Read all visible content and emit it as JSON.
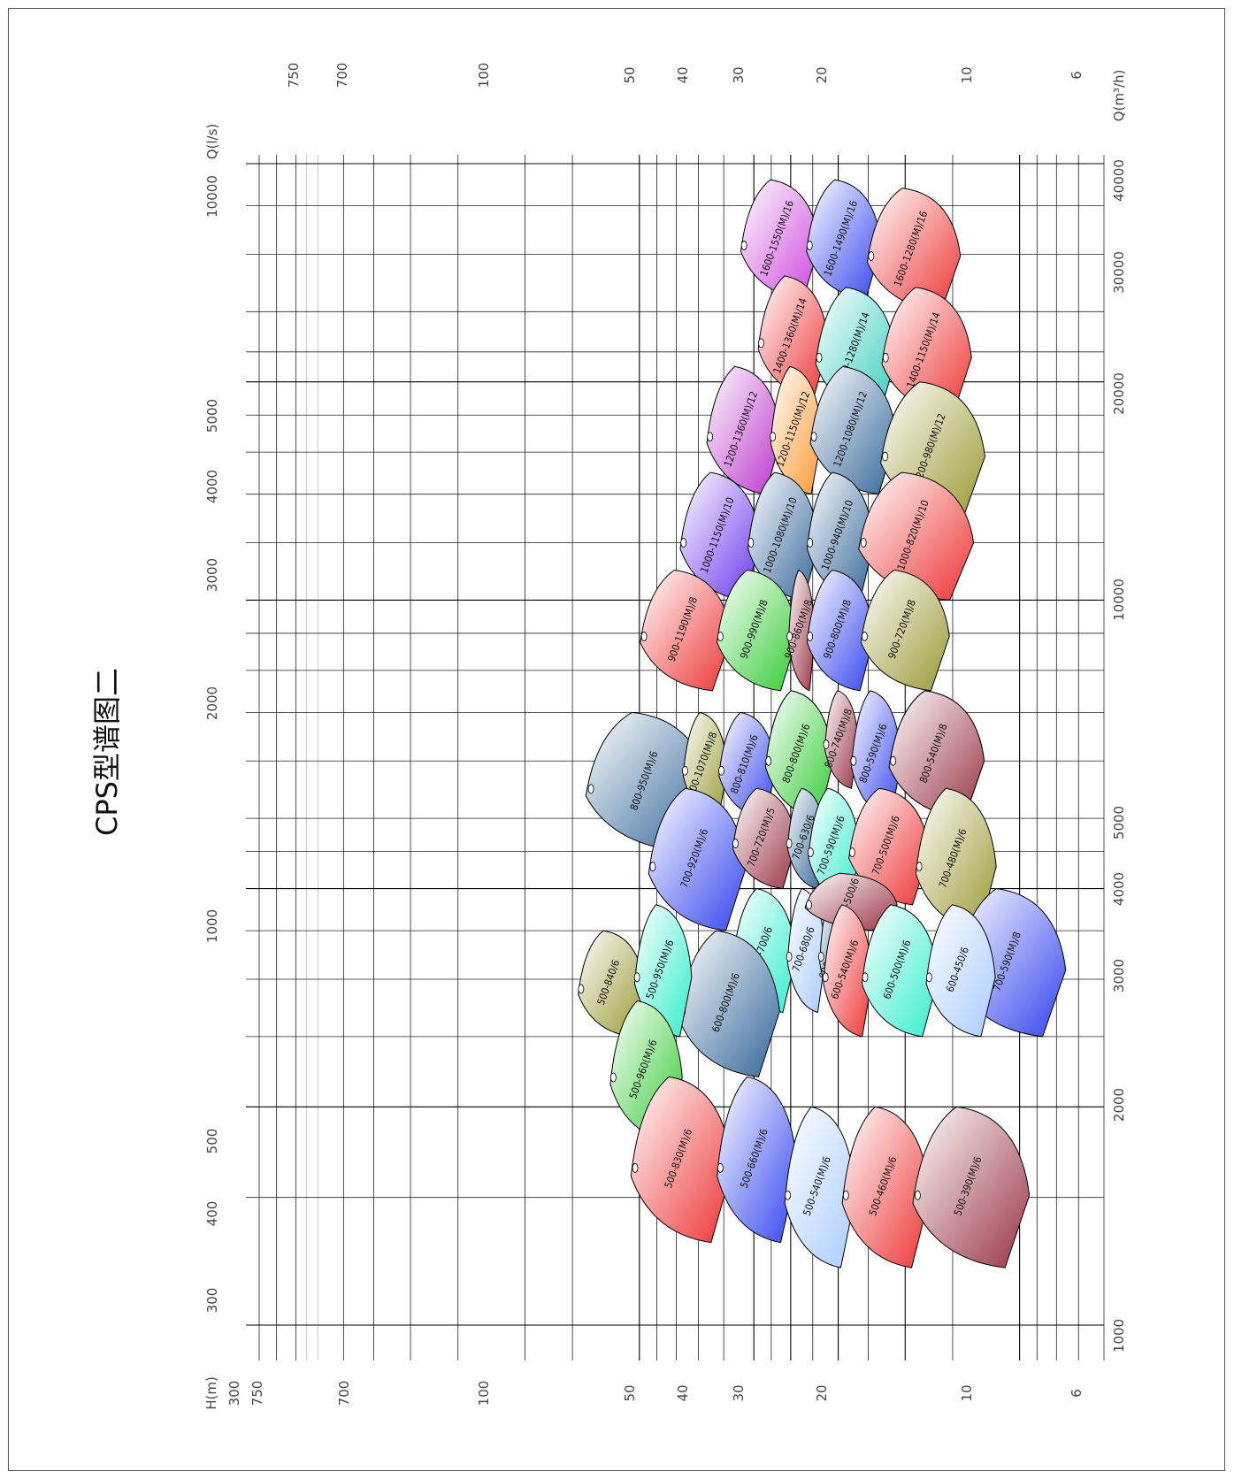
{
  "chart_data": {
    "type": "area",
    "title": "CPS型谱图二",
    "orientation": "rotated-90-ccw",
    "axes": {
      "flow_ls": {
        "label": "Q(l/s)",
        "scale": "log",
        "range": [
          1000,
          10000
        ],
        "ticks": [
          "10000",
          "5000",
          "4000",
          "3000",
          "2000",
          "1000",
          "500",
          "400",
          "300"
        ]
      },
      "flow_m3h": {
        "label": "Q(m³/h)",
        "scale": "log",
        "range": [
          1000,
          40000
        ],
        "ticks": [
          "40000",
          "30000",
          "20000",
          "10000",
          "5000",
          "4000",
          "3000",
          "2000",
          "1000"
        ]
      },
      "head_top": {
        "label": "",
        "scale": "log",
        "range": [
          6,
          1000
        ],
        "ticks": [
          "750",
          "700",
          "100",
          "50",
          "40",
          "30",
          "20",
          "10",
          "6"
        ]
      },
      "head_bottom": {
        "label": "H(m)",
        "scale": "log",
        "range": [
          6,
          1000
        ],
        "ticks": [
          "300",
          "750",
          "700",
          "100",
          "50",
          "40",
          "30",
          "20",
          "10",
          "6"
        ]
      }
    },
    "grid": true,
    "series": [
      {
        "name": "1600-1550(M)/16",
        "color": "#cc44dd",
        "q_range": [
          26000,
          38000
        ],
        "h_range": [
          35,
          52
        ]
      },
      {
        "name": "1600-1490(M)/16",
        "color": "#3344ee",
        "q_range": [
          26000,
          38000
        ],
        "h_range": [
          24,
          35
        ]
      },
      {
        "name": "1600-1280(M)/16",
        "color": "#ee3333",
        "q_range": [
          25000,
          37000
        ],
        "h_range": [
          15,
          24
        ]
      },
      {
        "name": "1400-1360(M)/14",
        "color": "#ee3333",
        "q_range": [
          19000,
          28000
        ],
        "h_range": [
          33,
          47
        ]
      },
      {
        "name": "1400-1280(M)/14",
        "color": "#33ccbb",
        "q_range": [
          18000,
          27000
        ],
        "h_range": [
          22,
          33
        ]
      },
      {
        "name": "1400-1150(M)/14",
        "color": "#ee3333",
        "q_range": [
          18000,
          27000
        ],
        "h_range": [
          14,
          22
        ]
      },
      {
        "name": "1200-1360(M)/12",
        "color": "#bb33cc",
        "q_range": [
          14000,
          21000
        ],
        "h_range": [
          44,
          64
        ]
      },
      {
        "name": "1200-1150(M)/12",
        "color": "#ff9933",
        "q_range": [
          14000,
          21000
        ],
        "h_range": [
          34,
          44
        ]
      },
      {
        "name": "1200-1080(M)/12",
        "color": "#336699",
        "q_range": [
          14000,
          21000
        ],
        "h_range": [
          22,
          34
        ]
      },
      {
        "name": "1200-980(M)/12",
        "color": "#999933",
        "q_range": [
          13000,
          20000
        ],
        "h_range": [
          13,
          22
        ]
      },
      {
        "name": "1000-1150(M)/10",
        "color": "#6633ee",
        "q_range": [
          10000,
          15000
        ],
        "h_range": [
          50,
          75
        ]
      },
      {
        "name": "1000-1080(M)/10",
        "color": "#336699",
        "q_range": [
          10000,
          15000
        ],
        "h_range": [
          35,
          50
        ]
      },
      {
        "name": "1000-940(M)/10",
        "color": "#336699",
        "q_range": [
          10000,
          15000
        ],
        "h_range": [
          25,
          35
        ]
      },
      {
        "name": "1000-820(M)/10",
        "color": "#ee3333",
        "q_range": [
          10000,
          15000
        ],
        "h_range": [
          14,
          25
        ]
      },
      {
        "name": "900-1190(M)/8",
        "color": "#ee3333",
        "q_range": [
          7500,
          11000
        ],
        "h_range": [
          60,
          95
        ]
      },
      {
        "name": "900-990(M)/8",
        "color": "#33cc33",
        "q_range": [
          7500,
          11000
        ],
        "h_range": [
          40,
          60
        ]
      },
      {
        "name": "900-860(M)/8",
        "color": "#993344",
        "q_range": [
          7500,
          11000
        ],
        "h_range": [
          35,
          40
        ]
      },
      {
        "name": "900-800(M)/8",
        "color": "#3344ee",
        "q_range": [
          7500,
          11000
        ],
        "h_range": [
          25,
          35
        ]
      },
      {
        "name": "900-720(M)/8",
        "color": "#999933",
        "q_range": [
          7500,
          11000
        ],
        "h_range": [
          16,
          25
        ]
      },
      {
        "name": "800-950(M)/6",
        "color": "#336699",
        "q_range": [
          4500,
          7000
        ],
        "h_range": [
          70,
          130
        ]
      },
      {
        "name": "800-1070(M)/8",
        "color": "#999933",
        "q_range": [
          5000,
          7000
        ],
        "h_range": [
          60,
          75
        ]
      },
      {
        "name": "800-810(M)/6",
        "color": "#3344ee",
        "q_range": [
          5000,
          7000
        ],
        "h_range": [
          45,
          60
        ]
      },
      {
        "name": "800-650(M)/6",
        "color": "#33cc33",
        "q_range": [
          5000,
          7500
        ],
        "h_range": [
          32,
          45
        ]
      },
      {
        "name": "800-800(M)/6",
        "color": "#33cc33",
        "q_range": [
          5000,
          7500
        ],
        "h_range": [
          32,
          45
        ]
      },
      {
        "name": "800-740(M)/8",
        "color": "#993344",
        "q_range": [
          5500,
          7500
        ],
        "h_range": [
          27,
          32
        ]
      },
      {
        "name": "800-590(M)/6",
        "color": "#3344ee",
        "q_range": [
          5000,
          7500
        ],
        "h_range": [
          21,
          27
        ]
      },
      {
        "name": "800-530(M)/6",
        "color": "#993344",
        "q_range": [
          5000,
          7500
        ],
        "h_range": [
          13,
          21
        ]
      },
      {
        "name": "800-540(M)/8",
        "color": "#993344",
        "q_range": [
          5000,
          7500
        ],
        "h_range": [
          13,
          21
        ]
      },
      {
        "name": "700-920(M)/6",
        "color": "#3344ee",
        "q_range": [
          3500,
          5500
        ],
        "h_range": [
          55,
          90
        ]
      },
      {
        "name": "700-720(M)/5",
        "color": "#993344",
        "q_range": [
          4000,
          5500
        ],
        "h_range": [
          40,
          55
        ]
      },
      {
        "name": "700-630/6",
        "color": "#336699",
        "q_range": [
          4000,
          5500
        ],
        "h_range": [
          33,
          40
        ]
      },
      {
        "name": "700-590(M)/6",
        "color": "#33eecc",
        "q_range": [
          3800,
          5500
        ],
        "h_range": [
          27,
          35
        ]
      },
      {
        "name": "700-500(M)/6",
        "color": "#ee3333",
        "q_range": [
          3800,
          5500
        ],
        "h_range": [
          18,
          27
        ]
      },
      {
        "name": "700-480(M)/6",
        "color": "#999933",
        "q_range": [
          3500,
          5500
        ],
        "h_range": [
          12,
          18
        ]
      },
      {
        "name": "700-590(M)/8",
        "color": "#3344ee",
        "q_range": [
          2500,
          4000
        ],
        "h_range": [
          8,
          14
        ]
      },
      {
        "name": "600-700/6",
        "color": "#33eecc",
        "q_range": [
          2700,
          4000
        ],
        "h_range": [
          40,
          55
        ]
      },
      {
        "name": "700-680/6",
        "color": "#aaccff",
        "q_range": [
          2700,
          4000
        ],
        "h_range": [
          33,
          40
        ]
      },
      {
        "name": "600-640(M)/6",
        "color": "#336699",
        "q_range": [
          2700,
          4000
        ],
        "h_range": [
          28,
          33
        ]
      },
      {
        "name": "600-500/6",
        "color": "#993344",
        "q_range": [
          3500,
          4200
        ],
        "h_range": [
          22,
          35
        ]
      },
      {
        "name": "600-540(M)/6",
        "color": "#ee3333",
        "q_range": [
          2500,
          3800
        ],
        "h_range": [
          25,
          32
        ]
      },
      {
        "name": "600-500(M)/6",
        "color": "#33eecc",
        "q_range": [
          2500,
          3800
        ],
        "h_range": [
          17,
          25
        ]
      },
      {
        "name": "600-450/6",
        "color": "#aaccff",
        "q_range": [
          2500,
          3800
        ],
        "h_range": [
          12,
          17
        ]
      },
      {
        "name": "600-800(M)/6",
        "color": "#336699",
        "q_range": [
          2200,
          3500
        ],
        "h_range": [
          45,
          75
        ]
      },
      {
        "name": "500-840/6",
        "color": "#999933",
        "q_range": [
          2500,
          3500
        ],
        "h_range": [
          100,
          140
        ]
      },
      {
        "name": "500-950(M)/6",
        "color": "#33eecc",
        "q_range": [
          2500,
          3800
        ],
        "h_range": [
          75,
          100
        ]
      },
      {
        "name": "500-960(M)/6",
        "color": "#33cc33",
        "q_range": [
          1800,
          2800
        ],
        "h_range": [
          80,
          115
        ]
      },
      {
        "name": "500-830(M)/6",
        "color": "#ee3333",
        "q_range": [
          1300,
          2200
        ],
        "h_range": [
          60,
          100
        ]
      },
      {
        "name": "500-660(M)/6",
        "color": "#3344ee",
        "q_range": [
          1300,
          2200
        ],
        "h_range": [
          40,
          60
        ]
      },
      {
        "name": "500-540(M)/6",
        "color": "#aaccff",
        "q_range": [
          1200,
          2000
        ],
        "h_range": [
          28,
          40
        ]
      },
      {
        "name": "500-460(M)/6",
        "color": "#ee3333",
        "q_range": [
          1200,
          2000
        ],
        "h_range": [
          18,
          28
        ]
      },
      {
        "name": "500-390(M)/6",
        "color": "#993344",
        "q_range": [
          1200,
          2000
        ],
        "h_range": [
          10,
          18
        ]
      }
    ]
  }
}
